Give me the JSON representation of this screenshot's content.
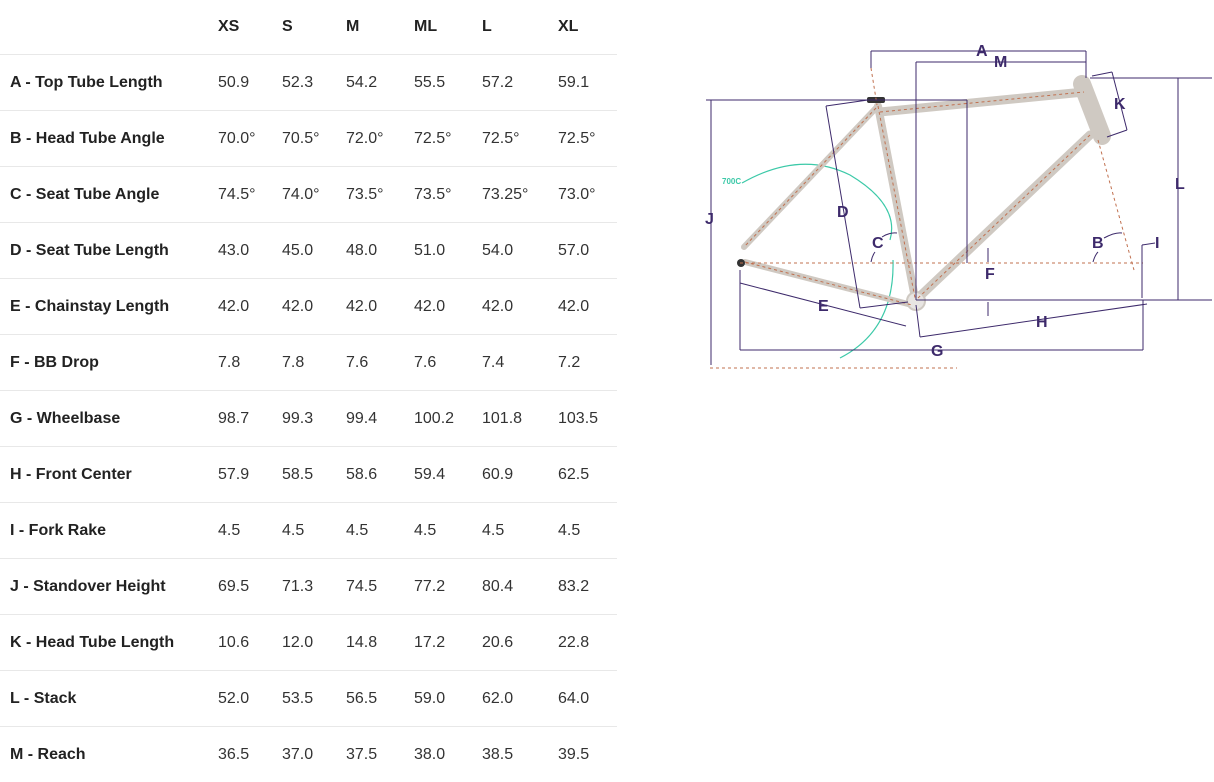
{
  "table": {
    "columns": [
      "",
      "XS",
      "S",
      "M",
      "ML",
      "L",
      "XL"
    ],
    "rows": [
      {
        "label": "A - Top Tube Length",
        "values": [
          "50.9",
          "52.3",
          "54.2",
          "55.5",
          "57.2",
          "59.1"
        ]
      },
      {
        "label": "B - Head Tube Angle",
        "values": [
          "70.0°",
          "70.5°",
          "72.0°",
          "72.5°",
          "72.5°",
          "72.5°"
        ]
      },
      {
        "label": "C - Seat Tube Angle",
        "values": [
          "74.5°",
          "74.0°",
          "73.5°",
          "73.5°",
          "73.25°",
          "73.0°"
        ]
      },
      {
        "label": "D - Seat Tube Length",
        "values": [
          "43.0",
          "45.0",
          "48.0",
          "51.0",
          "54.0",
          "57.0"
        ]
      },
      {
        "label": "E - Chainstay Length",
        "values": [
          "42.0",
          "42.0",
          "42.0",
          "42.0",
          "42.0",
          "42.0"
        ]
      },
      {
        "label": "F - BB Drop",
        "values": [
          "7.8",
          "7.8",
          "7.6",
          "7.6",
          "7.4",
          "7.2"
        ]
      },
      {
        "label": "G - Wheelbase",
        "values": [
          "98.7",
          "99.3",
          "99.4",
          "100.2",
          "101.8",
          "103.5"
        ]
      },
      {
        "label": "H - Front Center",
        "values": [
          "57.9",
          "58.5",
          "58.6",
          "59.4",
          "60.9",
          "62.5"
        ]
      },
      {
        "label": "I - Fork Rake",
        "values": [
          "4.5",
          "4.5",
          "4.5",
          "4.5",
          "4.5",
          "4.5"
        ]
      },
      {
        "label": "J - Standover Height",
        "values": [
          "69.5",
          "71.3",
          "74.5",
          "77.2",
          "80.4",
          "83.2"
        ]
      },
      {
        "label": "K - Head Tube Length",
        "values": [
          "10.6",
          "12.0",
          "14.8",
          "17.2",
          "20.6",
          "22.8"
        ]
      },
      {
        "label": "L - Stack",
        "values": [
          "52.0",
          "53.5",
          "56.5",
          "59.0",
          "62.0",
          "64.0"
        ]
      },
      {
        "label": "M - Reach",
        "values": [
          "36.5",
          "37.0",
          "37.5",
          "38.0",
          "38.5",
          "39.5"
        ]
      }
    ]
  },
  "diagram": {
    "labels": {
      "A": "A",
      "B": "B",
      "C": "C",
      "D": "D",
      "E": "E",
      "F": "F",
      "G": "G",
      "H": "H",
      "I": "I",
      "J": "J",
      "K": "K",
      "L": "L",
      "M": "M"
    },
    "wheel_size": "700C",
    "colors": {
      "dimension": "#3d2a6b",
      "frame": "#c9c3bc",
      "centerline": "#c0704f",
      "wheel_arc": "#3cc9a8"
    }
  }
}
